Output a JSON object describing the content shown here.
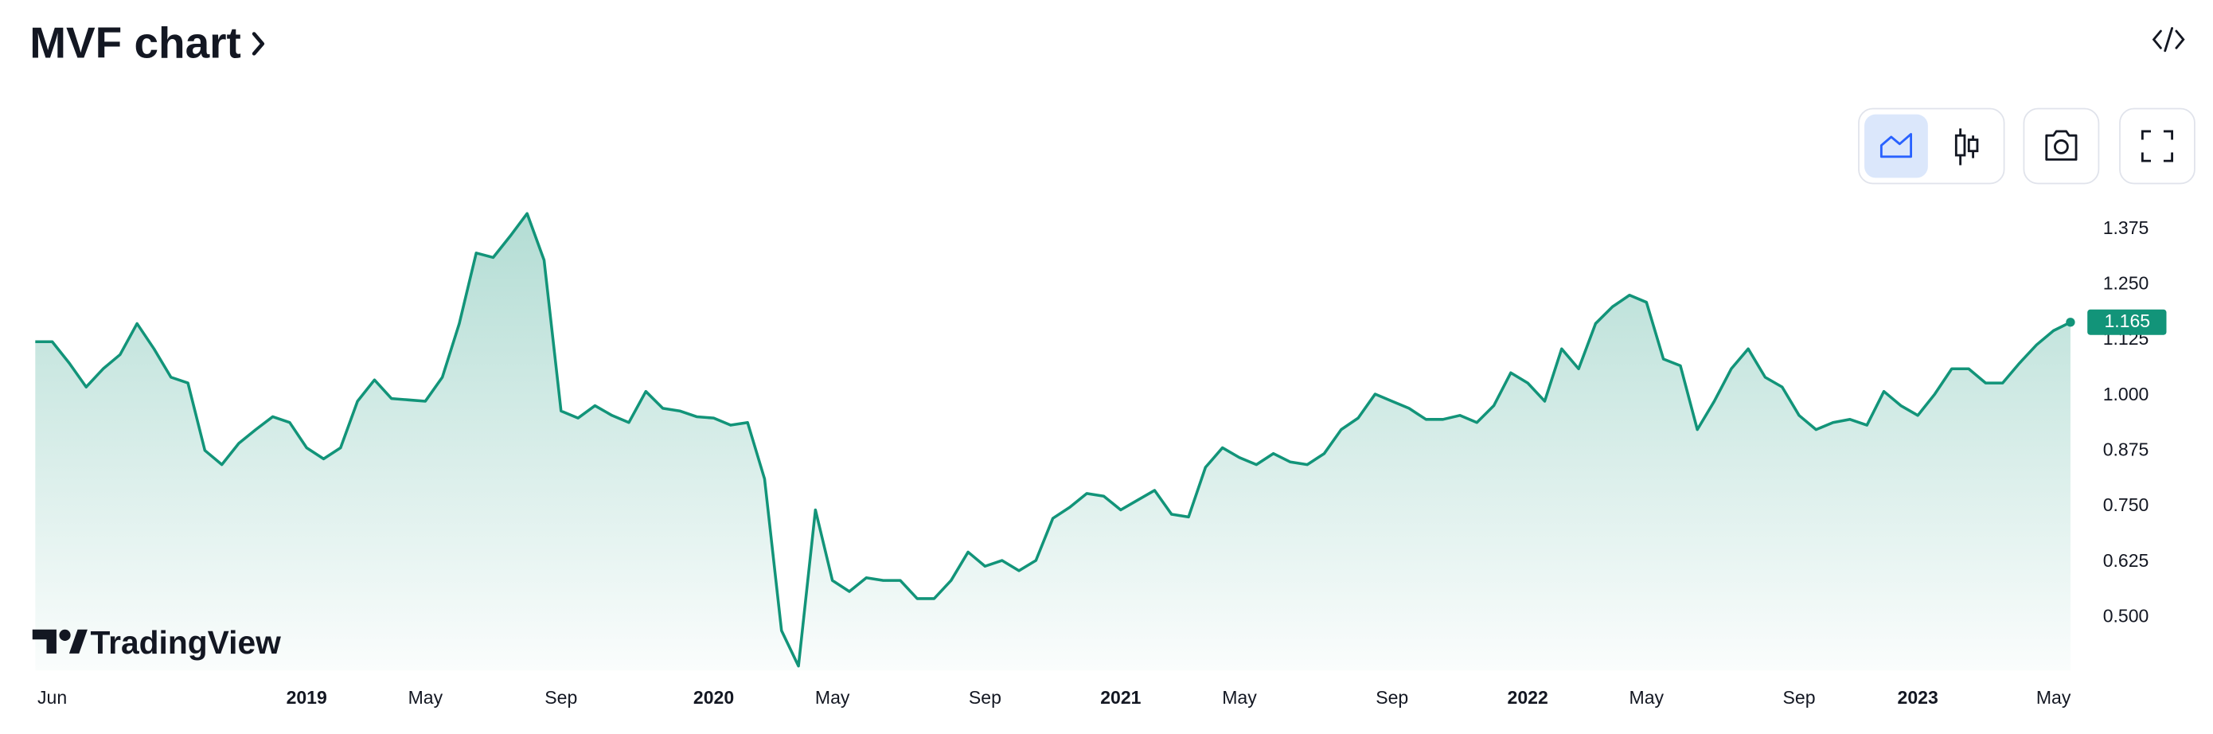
{
  "title": "MVF chart",
  "watermark": "TradingView",
  "chart_data": {
    "type": "area",
    "color": "#129479",
    "categories": [
      null,
      "Jun",
      null,
      null,
      null,
      null,
      null,
      null,
      null,
      null,
      null,
      null,
      null,
      null,
      null,
      null,
      "2019",
      null,
      null,
      null,
      null,
      null,
      null,
      "May",
      null,
      null,
      null,
      null,
      null,
      null,
      null,
      "Sep",
      null,
      null,
      null,
      null,
      null,
      null,
      null,
      null,
      "2020",
      null,
      null,
      null,
      null,
      null,
      null,
      "May",
      null,
      null,
      null,
      null,
      null,
      null,
      null,
      null,
      "Sep",
      null,
      null,
      null,
      null,
      null,
      null,
      null,
      "2021",
      null,
      null,
      null,
      null,
      null,
      null,
      "May",
      null,
      null,
      null,
      null,
      null,
      null,
      null,
      null,
      "Sep",
      null,
      null,
      null,
      null,
      null,
      null,
      null,
      "2022",
      null,
      null,
      null,
      null,
      null,
      null,
      "May",
      null,
      null,
      null,
      null,
      null,
      null,
      null,
      null,
      "Sep",
      null,
      null,
      null,
      null,
      null,
      null,
      "2023",
      null,
      null,
      null,
      null,
      null,
      null,
      null,
      "May",
      null
    ],
    "series": [
      {
        "name": "MVF",
        "color": "#129479",
        "values": [
          1.121,
          1.121,
          1.073,
          1.019,
          1.06,
          1.092,
          1.162,
          1.105,
          1.041,
          1.028,
          0.876,
          0.844,
          0.892,
          0.923,
          0.952,
          0.939,
          0.882,
          0.857,
          0.882,
          0.987,
          1.035,
          0.993,
          0.99,
          0.987,
          1.041,
          1.162,
          1.321,
          1.311,
          1.359,
          1.41,
          1.305,
          0.965,
          0.949,
          0.977,
          0.955,
          0.939,
          1.009,
          0.971,
          0.965,
          0.952,
          0.949,
          0.933,
          0.939,
          0.812,
          0.47,
          0.39,
          0.742,
          0.583,
          0.558,
          0.589,
          0.583,
          0.583,
          0.542,
          0.542,
          0.583,
          0.647,
          0.615,
          0.628,
          0.605,
          0.628,
          0.723,
          0.748,
          0.779,
          0.773,
          0.742,
          0.764,
          0.786,
          0.732,
          0.726,
          0.838,
          0.882,
          0.86,
          0.844,
          0.869,
          0.85,
          0.844,
          0.869,
          0.923,
          0.949,
          1.003,
          0.987,
          0.971,
          0.946,
          0.946,
          0.955,
          0.939,
          0.977,
          1.051,
          1.028,
          0.987,
          1.105,
          1.06,
          1.162,
          1.2,
          1.226,
          1.21,
          1.082,
          1.067,
          0.923,
          0.987,
          1.06,
          1.105,
          1.041,
          1.019,
          0.955,
          0.923,
          0.939,
          0.946,
          0.933,
          1.009,
          0.977,
          0.955,
          1.003,
          1.06,
          1.06,
          1.028,
          1.028,
          1.073,
          1.114,
          1.146,
          1.165
        ]
      }
    ],
    "ylim": [
      0.38,
      1.43
    ],
    "yticks": [
      {
        "value": 0.5,
        "label": "0.500"
      },
      0.625,
      {
        "value": 0.75,
        "label": "0.750"
      },
      0.875,
      {
        "value": 1,
        "label": "1.000"
      },
      1.125,
      {
        "value": 1.25,
        "label": "1.250"
      },
      1.375
    ],
    "grid": false
  }
}
